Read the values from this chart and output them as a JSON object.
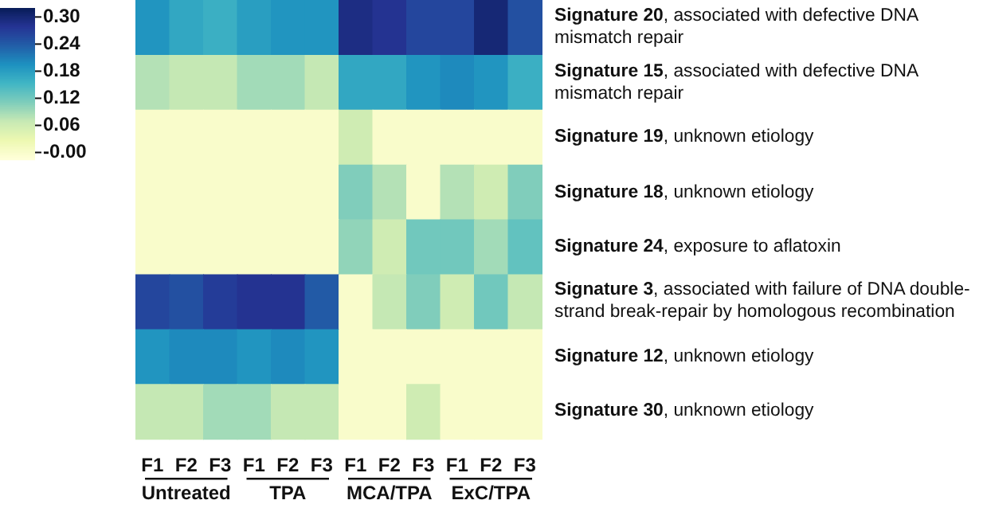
{
  "chart_data": {
    "type": "heatmap",
    "categories": [
      "F1",
      "F2",
      "F3",
      "F1",
      "F2",
      "F3",
      "F1",
      "F2",
      "F3",
      "F1",
      "F2",
      "F3"
    ],
    "y_categories": [
      "Signature 20, associated with defective DNA mismatch repair",
      "Signature 15, associated with defective DNA mismatch repair",
      "Signature 19, unknown etiology",
      "Signature 18, unknown etiology",
      "Signature 24, exposure to aflatoxin",
      "Signature 3, associated with failure of DNA double-strand break-repair by homologous recombination",
      "Signature 12, unknown etiology",
      "Signature 30, unknown etiology"
    ],
    "cells": [
      [
        0.19,
        0.17,
        0.16,
        0.18,
        0.19,
        0.19,
        0.29,
        0.28,
        0.26,
        0.26,
        0.3,
        0.25
      ],
      [
        0.08,
        0.07,
        0.07,
        0.09,
        0.09,
        0.07,
        0.17,
        0.17,
        0.19,
        0.2,
        0.19,
        0.16
      ],
      [
        0,
        0,
        0,
        0,
        0,
        0,
        0.06,
        0,
        0,
        0,
        0,
        0
      ],
      [
        0,
        0,
        0,
        0,
        0,
        0,
        0.11,
        0.08,
        0,
        0.08,
        0.06,
        0.11
      ],
      [
        0,
        0,
        0,
        0,
        0,
        0,
        0.1,
        0.06,
        0.12,
        0.12,
        0.09,
        0.13
      ],
      [
        0.26,
        0.25,
        0.27,
        0.28,
        0.28,
        0.24,
        0,
        0.07,
        0.11,
        0.06,
        0.12,
        0.07
      ],
      [
        0.19,
        0.2,
        0.2,
        0.19,
        0.2,
        0.19,
        0,
        0,
        0,
        0,
        0,
        0
      ],
      [
        0.07,
        0.07,
        0.09,
        0.09,
        0.07,
        0.07,
        0,
        0,
        0.06,
        0,
        0,
        0
      ]
    ],
    "clim": [
      -0.015,
      0.32
    ],
    "cticks": [
      {
        "value": 0.3,
        "label": "0.30"
      },
      {
        "value": 0.24,
        "label": "0.24"
      },
      {
        "value": 0.18,
        "label": "0.18"
      },
      {
        "value": 0.12,
        "label": "0.12"
      },
      {
        "value": 0.06,
        "label": "0.06"
      },
      {
        "value": 0,
        "label": "-0.00"
      }
    ],
    "annotations": [
      "Untreated",
      "TPA",
      "MCA/TPA",
      "ExC/TPA"
    ]
  }
}
